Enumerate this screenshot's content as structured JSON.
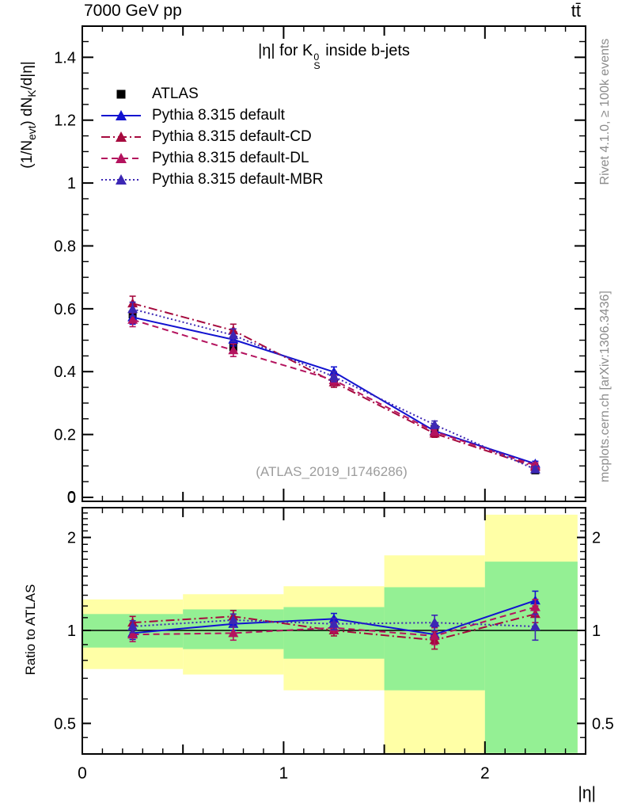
{
  "header": {
    "beam": "7000 GeV pp",
    "process": "tt̄"
  },
  "plot_title": {
    "prefix": "|η| for K",
    "k_sup": "0",
    "k_sub": "S",
    "suffix": " inside b-jets"
  },
  "y_axis_label": {
    "p1": "(1/N",
    "sub1": "evt",
    "p2": ") dN",
    "sub2": "K",
    "p3": "/d|η|"
  },
  "ratio_y_label": "Ratio to ATLAS",
  "x_axis_label": "|η|",
  "watermark": "(ATLAS_2019_I1746286)",
  "credits": {
    "top": "Rivet 4.1.0, ≥ 100k events",
    "bottom": "mcplots.cern.ch [arXiv:1306.3436]"
  },
  "colors": {
    "atlas": "#000000",
    "default": "#1212d0",
    "default_cd": "#a60a3e",
    "default_dl": "#b4135e",
    "default_mbr": "#3c27b4",
    "band_green": "#94f094",
    "band_yellow": "#ffffa6",
    "credit_gray": "#8c8c8c",
    "watermark_gray": "#9c9c9c"
  },
  "legend": [
    {
      "label": "ATLAS",
      "marker": "square",
      "color": "#000000",
      "line": "none"
    },
    {
      "label": "Pythia 8.315 default",
      "marker": "triangle",
      "color": "#1212d0",
      "line": "solid"
    },
    {
      "label": "Pythia 8.315 default-CD",
      "marker": "triangle",
      "color": "#a60a3e",
      "line": "dashdot"
    },
    {
      "label": "Pythia 8.315 default-DL",
      "marker": "triangle",
      "color": "#b4135e",
      "line": "dashed"
    },
    {
      "label": "Pythia 8.315 default-MBR",
      "marker": "triangle",
      "color": "#3c27b4",
      "line": "dotted"
    }
  ],
  "chart_data": {
    "type": "line",
    "title": "|η| for K^0_S inside b-jets",
    "xlabel": "|η|",
    "ylabel": "(1/N_evt) dN_K/d|η|",
    "x": [
      0.25,
      0.75,
      1.25,
      1.75,
      2.25
    ],
    "bin_edges": [
      0,
      0.5,
      1.0,
      1.5,
      2.0,
      2.5
    ],
    "xticks": [
      0,
      1,
      2
    ],
    "main_panel": {
      "ylim": [
        0,
        1.5
      ],
      "ytick_major_step": 0.2,
      "ytick_minor_step": 0.05,
      "series": [
        {
          "name": "ATLAS",
          "marker": "square",
          "color": "#000000",
          "line": "none",
          "values": [
            0.582,
            0.478,
            0.366,
            0.218,
            0.086
          ],
          "errors": [
            0.01,
            0.009,
            0.007,
            0.005,
            0.004
          ]
        },
        {
          "name": "Pythia 8.315 default",
          "marker": "triangle",
          "color": "#1212d0",
          "line": "solid",
          "values": [
            0.573,
            0.502,
            0.399,
            0.211,
            0.107
          ],
          "errors": [
            0.022,
            0.02,
            0.016,
            0.011,
            0.008
          ]
        },
        {
          "name": "Pythia 8.315 default-CD",
          "marker": "triangle",
          "color": "#a60a3e",
          "line": "dashdot",
          "values": [
            0.617,
            0.531,
            0.366,
            0.203,
            0.097
          ],
          "errors": [
            0.023,
            0.02,
            0.016,
            0.012,
            0.008
          ]
        },
        {
          "name": "Pythia 8.315 default-DL",
          "marker": "triangle",
          "color": "#b4135e",
          "line": "dashed",
          "values": [
            0.565,
            0.468,
            0.373,
            0.209,
            0.102
          ],
          "errors": [
            0.022,
            0.02,
            0.016,
            0.011,
            0.008
          ]
        },
        {
          "name": "Pythia 8.315 default-MBR",
          "marker": "triangle",
          "color": "#3c27b4",
          "line": "dotted",
          "values": [
            0.599,
            0.516,
            0.384,
            0.231,
            0.089
          ],
          "errors": [
            0.022,
            0.02,
            0.016,
            0.012,
            0.009
          ]
        }
      ]
    },
    "ratio_panel": {
      "label": "Ratio to ATLAS",
      "yscale": "log",
      "ylim": [
        0.4,
        2.5
      ],
      "yticks": [
        0.5,
        1,
        2
      ],
      "reference_line": 1.0,
      "bands": {
        "band_clip_max": 2.46,
        "green": [
          [
            0.88,
            1.13
          ],
          [
            0.87,
            1.17
          ],
          [
            0.81,
            1.19
          ],
          [
            0.64,
            1.38
          ],
          [
            0.4,
            1.67
          ]
        ],
        "yellow": [
          [
            0.75,
            1.26
          ],
          [
            0.72,
            1.31
          ],
          [
            0.64,
            1.39
          ],
          [
            0.4,
            1.75
          ],
          [
            0.4,
            2.37
          ]
        ]
      },
      "series": [
        {
          "name": "Pythia 8.315 default",
          "marker": "triangle",
          "color": "#1212d0",
          "line": "solid",
          "values": [
            0.98,
            1.05,
            1.09,
            0.97,
            1.25
          ],
          "errors": [
            0.045,
            0.05,
            0.045,
            0.055,
            0.09
          ]
        },
        {
          "name": "Pythia 8.315 default-CD",
          "marker": "triangle",
          "color": "#a60a3e",
          "line": "dashdot",
          "values": [
            1.06,
            1.11,
            1.0,
            0.93,
            1.13
          ],
          "errors": [
            0.05,
            0.05,
            0.04,
            0.06,
            0.07
          ]
        },
        {
          "name": "Pythia 8.315 default-DL",
          "marker": "triangle",
          "color": "#b4135e",
          "line": "dashed",
          "values": [
            0.97,
            0.98,
            1.02,
            0.96,
            1.19
          ],
          "errors": [
            0.05,
            0.05,
            0.04,
            0.06,
            0.07
          ]
        },
        {
          "name": "Pythia 8.315 default-MBR",
          "marker": "triangle",
          "color": "#3c27b4",
          "line": "dotted",
          "values": [
            1.03,
            1.08,
            1.05,
            1.06,
            1.03
          ],
          "errors": [
            0.045,
            0.05,
            0.045,
            0.06,
            0.1
          ]
        }
      ]
    }
  }
}
